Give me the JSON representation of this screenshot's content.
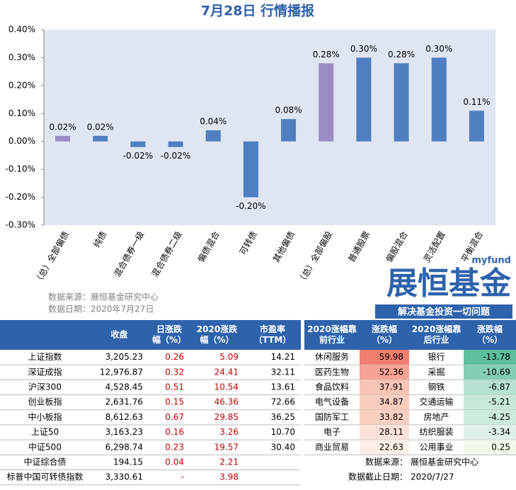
{
  "chart_data": {
    "type": "bar",
    "title": "7月28日  行情播报",
    "categories": [
      "（总）全部偏债",
      "纯债",
      "混合债券一级",
      "混合债券二级",
      "偏债混合",
      "可转债",
      "其他偏债",
      "（总）全部偏股",
      "普通股票",
      "偏股混合",
      "灵活配置",
      "平衡混合"
    ],
    "values": [
      0.02,
      0.02,
      -0.02,
      -0.02,
      0.04,
      -0.2,
      0.08,
      0.28,
      0.3,
      0.28,
      0.3,
      0.11
    ],
    "value_labels": [
      "0.02%",
      "0.02%",
      "-0.02%",
      "-0.02%",
      "0.04%",
      "-0.20%",
      "0.08%",
      "0.28%",
      "0.30%",
      "0.28%",
      "0.30%",
      "0.11%"
    ],
    "colors": [
      "#9b8dc4",
      "#4f7fc0",
      "#4f7fc0",
      "#4f7fc0",
      "#4f7fc0",
      "#4f7fc0",
      "#4f7fc0",
      "#9b8dc4",
      "#4f7fc0",
      "#4f7fc0",
      "#4f7fc0",
      "#4f7fc0"
    ],
    "ylim": [
      -0.3,
      0.4
    ],
    "yticks": [
      {
        "value": -0.3,
        "label": "-0.30%"
      },
      {
        "value": -0.2,
        "label": "-0.20%"
      },
      {
        "value": -0.1,
        "label": "-0.10%"
      },
      {
        "value": 0,
        "label": "0.00%"
      },
      {
        "value": 0.1,
        "label": "0.10%"
      },
      {
        "value": 0.2,
        "label": "0.20%"
      },
      {
        "value": 0.3,
        "label": "0.30%"
      },
      {
        "value": 0.4,
        "label": "0.40%"
      }
    ]
  },
  "source": [
    "数据来源：展恒基金研究中心",
    "数据日期：2020年7月27日"
  ],
  "logo": {
    "brand": "myfund",
    "name": "展恒基金",
    "slogan": "解决基金投资一切问题"
  },
  "index_table": {
    "headers": [
      [
        "收盘"
      ],
      [
        "日涨跌",
        "幅（%）"
      ],
      [
        "2020涨跌",
        "幅（%）"
      ],
      [
        "市盈率",
        "（TTM）"
      ]
    ],
    "rows": [
      [
        "上证指数",
        "3,205.23",
        "0.26",
        "5.09",
        "14.21"
      ],
      [
        "深证成指",
        "12,976.87",
        "0.32",
        "24.41",
        "32.11"
      ],
      [
        "沪深300",
        "4,528.45",
        "0.51",
        "10.54",
        "13.61"
      ],
      [
        "创业板指",
        "2,631.76",
        "0.15",
        "46.36",
        "72.66"
      ],
      [
        "中小板指",
        "8,612.63",
        "0.67",
        "29.85",
        "36.25"
      ],
      [
        "上证50",
        "3,163.23",
        "0.16",
        "3.26",
        "10.70"
      ],
      [
        "中证500",
        "6,298.74",
        "0.23",
        "19.57",
        "30.40"
      ],
      [
        "中证综合债",
        "194.15",
        "0.04",
        "2.21"
      ],
      [
        "标普中国可转债指数",
        "3,330.61",
        "-",
        "3.98"
      ]
    ]
  },
  "industry_table": {
    "headers": [
      [
        "2020涨幅靠",
        "前行业"
      ],
      [
        "涨跌幅",
        "（%）"
      ],
      [
        "2020涨幅靠",
        "后行业"
      ],
      [
        "涨跌幅",
        "（%）"
      ]
    ],
    "rows": [
      [
        "休闲服务",
        "59.98",
        "银行",
        "-13.78"
      ],
      [
        "医药生物",
        "52.36",
        "采掘",
        "-10.69"
      ],
      [
        "食品饮料",
        "37.91",
        "钢铁",
        "-6.87"
      ],
      [
        "电气设备",
        "34.87",
        "交通运输",
        "-5.21"
      ],
      [
        "国防军工",
        "33.82",
        "房地产",
        "-4.25"
      ],
      [
        "电子",
        "28.11",
        "纺织服装",
        "-3.34"
      ],
      [
        "商业贸易",
        "22.63",
        "公用事业",
        "0.25"
      ]
    ],
    "top_colors": [
      "#f07e6e",
      "#f4a394",
      "#f8c4b4",
      "#f9cdbe",
      "#f9d0c2",
      "#fbe2d8",
      "#fdefe8"
    ],
    "bottom_colors": [
      "#5dbf9b",
      "#84cfb2",
      "#b6e2cf",
      "#c8e9d8",
      "#cdebdb",
      "#def1e6",
      "#f1f8ec"
    ],
    "footer": [
      [
        "数据来源：",
        "展恒基金研究中心"
      ],
      [
        "数据截止日期：",
        "2020/7/27"
      ]
    ]
  }
}
